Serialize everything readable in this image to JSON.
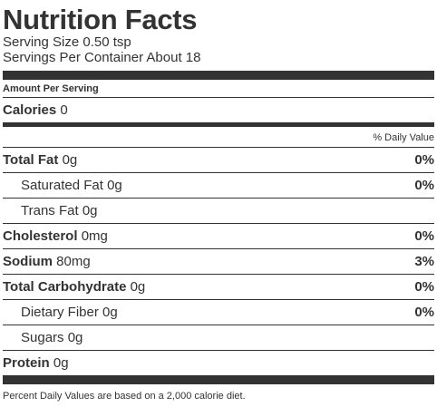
{
  "title": "Nutrition Facts",
  "serving_size": "Serving Size 0.50 tsp",
  "servings_per_container": "Servings Per Container About 18",
  "amount_per_serving": "Amount Per Serving",
  "calories": {
    "label": "Calories",
    "value": "0"
  },
  "daily_value_header": "% Daily Value",
  "nutrients": [
    {
      "label": "Total Fat",
      "amount": "0g",
      "dv": "0%"
    },
    {
      "label": "Saturated Fat",
      "amount": "0g",
      "dv": "0%"
    },
    {
      "label": "Trans Fat",
      "amount": "0g",
      "dv": ""
    },
    {
      "label": "Cholesterol",
      "amount": "0mg",
      "dv": "0%"
    },
    {
      "label": "Sodium",
      "amount": "80mg",
      "dv": "3%"
    },
    {
      "label": "Total Carbohydrate",
      "amount": "0g",
      "dv": "0%"
    },
    {
      "label": "Dietary Fiber",
      "amount": "0g",
      "dv": "0%"
    },
    {
      "label": "Sugars",
      "amount": "0g",
      "dv": ""
    },
    {
      "label": "Protein",
      "amount": "0g",
      "dv": ""
    }
  ],
  "footnote": "Percent Daily Values are based on a 2,000 calorie diet."
}
